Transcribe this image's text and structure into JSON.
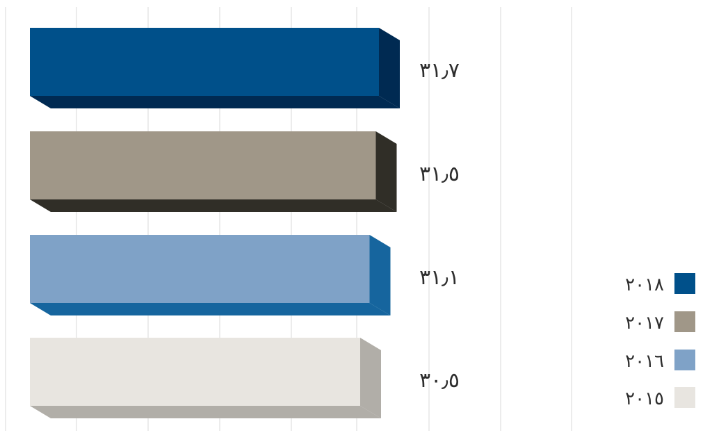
{
  "chart_data": {
    "type": "bar",
    "orientation": "horizontal",
    "style": "3d",
    "categories": [
      "٢٠١٨",
      "٢٠١٧",
      "٢٠١٦",
      "٢٠١٥"
    ],
    "values": [
      31.7,
      31.5,
      31.1,
      30.5
    ],
    "data_labels": [
      "٣١٫٧",
      "٣١٫٥",
      "٣١٫١",
      "٣٠٫٥"
    ],
    "colors": [
      {
        "front": "#00508a",
        "side": "#002a52"
      },
      {
        "front": "#a09788",
        "side": "#302e27"
      },
      {
        "front": "#7fa2c7",
        "side": "#16659e"
      },
      {
        "front": "#e8e5e0",
        "side": "#b1aea8"
      }
    ],
    "title": "",
    "xlabel": "",
    "ylabel": "",
    "grid": true,
    "legend": {
      "position": "bottom-right",
      "entries": [
        "٢٠١٨",
        "٢٠١٧",
        "٢٠١٦",
        "٢٠١٥"
      ]
    }
  }
}
